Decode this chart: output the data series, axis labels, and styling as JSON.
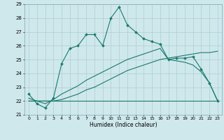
{
  "title": "",
  "xlabel": "Humidex (Indice chaleur)",
  "bg_color": "#cfe8ec",
  "grid_color": "#aecdd3",
  "line_color": "#1a7a6e",
  "xlim": [
    -0.5,
    23.5
  ],
  "ylim": [
    21,
    29
  ],
  "yticks": [
    21,
    22,
    23,
    24,
    25,
    26,
    27,
    28,
    29
  ],
  "xticks": [
    0,
    1,
    2,
    3,
    4,
    5,
    6,
    7,
    8,
    9,
    10,
    11,
    12,
    13,
    14,
    15,
    16,
    17,
    18,
    19,
    20,
    21,
    22,
    23
  ],
  "series1_x": [
    0,
    1,
    2,
    3,
    4,
    5,
    6,
    7,
    8,
    9,
    10,
    11,
    12,
    13,
    14,
    15,
    16,
    17,
    18,
    19,
    20,
    21,
    22,
    23
  ],
  "series1_y": [
    22.5,
    21.8,
    21.5,
    22.2,
    24.7,
    25.8,
    26.0,
    26.8,
    26.8,
    26.0,
    28.0,
    28.8,
    27.5,
    27.0,
    26.5,
    26.3,
    26.1,
    25.0,
    25.1,
    25.1,
    25.2,
    24.3,
    23.3,
    22.0
  ],
  "series2_x": [
    0,
    1,
    2,
    3,
    4,
    5,
    6,
    7,
    8,
    9,
    10,
    11,
    12,
    13,
    14,
    15,
    16,
    17,
    18,
    19,
    20,
    21,
    22,
    23
  ],
  "series2_y": [
    22.0,
    22.0,
    22.0,
    22.0,
    22.1,
    22.3,
    22.5,
    22.8,
    23.0,
    23.3,
    23.6,
    23.9,
    24.2,
    24.4,
    24.6,
    24.8,
    25.0,
    25.1,
    25.2,
    25.3,
    25.4,
    25.5,
    25.5,
    25.6
  ],
  "series3_x": [
    0,
    1,
    2,
    3,
    4,
    5,
    6,
    7,
    8,
    9,
    10,
    11,
    12,
    13,
    14,
    15,
    16,
    17,
    18,
    19,
    20,
    21,
    22,
    23
  ],
  "series3_y": [
    22.0,
    22.0,
    22.0,
    22.0,
    22.0,
    22.0,
    22.0,
    22.0,
    22.0,
    22.0,
    22.0,
    22.0,
    22.0,
    22.0,
    22.0,
    22.0,
    22.0,
    22.0,
    22.0,
    22.0,
    22.0,
    22.0,
    22.0,
    22.0
  ],
  "series4_x": [
    0,
    1,
    2,
    3,
    4,
    5,
    6,
    7,
    8,
    9,
    10,
    11,
    12,
    13,
    14,
    15,
    16,
    17,
    18,
    19,
    20,
    21,
    22,
    23
  ],
  "series4_y": [
    22.2,
    22.0,
    21.8,
    22.1,
    22.5,
    22.8,
    23.1,
    23.5,
    23.8,
    24.1,
    24.4,
    24.7,
    25.0,
    25.2,
    25.4,
    25.6,
    25.8,
    25.0,
    24.9,
    24.8,
    24.6,
    24.1,
    23.3,
    22.0
  ]
}
